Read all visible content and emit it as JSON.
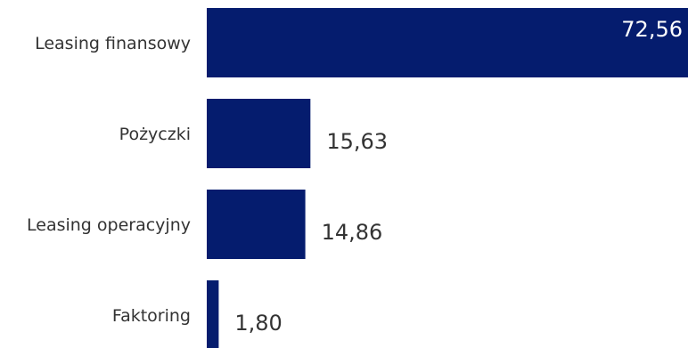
{
  "chart_data": {
    "type": "bar",
    "orientation": "horizontal",
    "categories": [
      "Leasing finansowy",
      "Pożyczki",
      "Leasing operacyjny",
      "Faktoring"
    ],
    "values": [
      72.56,
      15.63,
      14.86,
      1.8
    ],
    "value_labels": [
      "72,56",
      "15,63",
      "14,86",
      "1,80"
    ],
    "bar_color": "#051C6E",
    "label_color_inside": "#ffffff",
    "label_color_outside": "#333333",
    "xlim": [
      0,
      72.56
    ],
    "grid": false,
    "legend": false
  }
}
